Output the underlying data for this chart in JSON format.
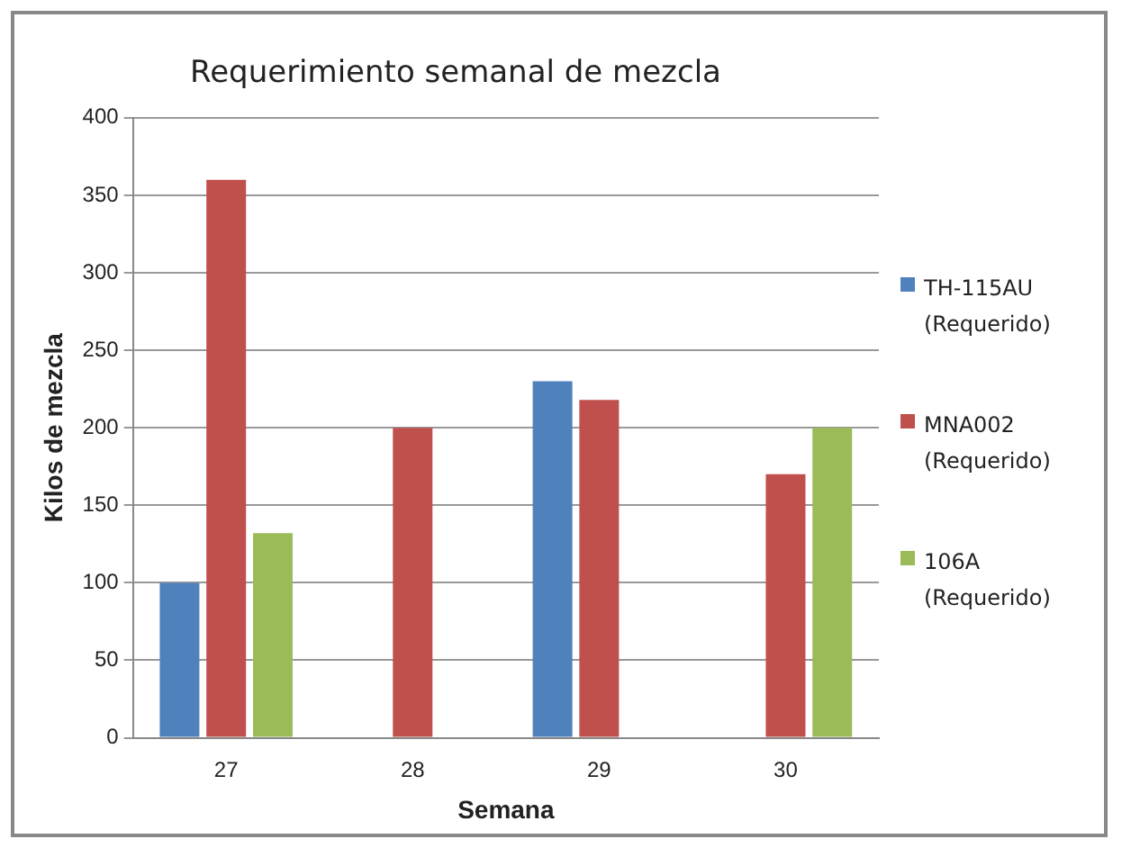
{
  "chart_data": {
    "type": "bar",
    "title": "Requerimiento semanal de mezcla",
    "xlabel": "Semana",
    "ylabel": "Kilos de mezcla",
    "categories": [
      "27",
      "28",
      "29",
      "30"
    ],
    "series": [
      {
        "name": "TH-115AU (Requerido)",
        "color": "#4f81bd",
        "values": [
          100,
          null,
          230,
          null
        ]
      },
      {
        "name": "MNA002 (Requerido)",
        "color": "#c0504d",
        "values": [
          360,
          200,
          218,
          170
        ]
      },
      {
        "name": "106A (Requerido)",
        "color": "#9bbb59",
        "values": [
          132,
          null,
          null,
          200
        ]
      }
    ],
    "ylim": [
      0,
      400
    ],
    "yticks": [
      0,
      50,
      100,
      150,
      200,
      250,
      300,
      350,
      400
    ],
    "grid": "y",
    "legend": "right"
  }
}
